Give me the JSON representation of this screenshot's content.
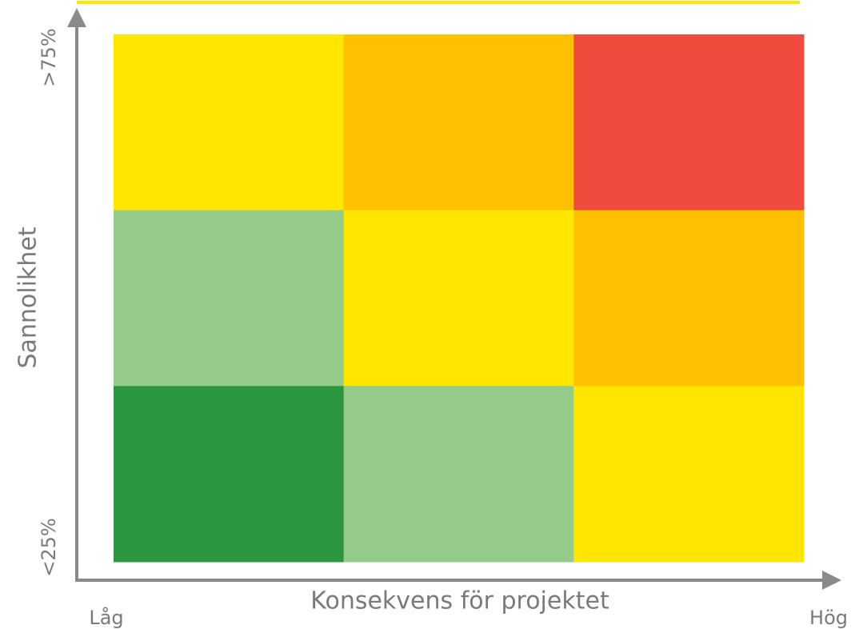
{
  "y_axis": {
    "label": "Sannolikhet",
    "top_label": ">75%",
    "bottom_label": "<25%"
  },
  "x_axis": {
    "label": "Konsekvens för projektet",
    "left_label": "Låg",
    "right_label": "Hög"
  },
  "matrix": {
    "rows": [
      [
        "#FFE600",
        "#FFC000",
        "#F04C3E"
      ],
      [
        "#95CB89",
        "#FFE600",
        "#FFC000"
      ],
      [
        "#2C973E",
        "#95CB89",
        "#FFE600"
      ]
    ]
  }
}
